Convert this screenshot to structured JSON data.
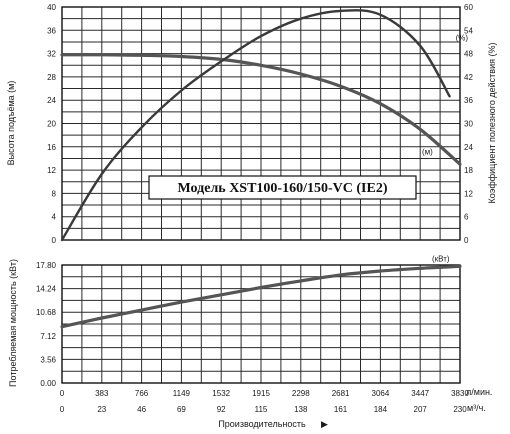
{
  "chart_data": {
    "type": "line",
    "title": "Модель XST100-160/150-VC (IE2)",
    "grid": true,
    "x_axis": {
      "label": "Производительность",
      "primary_unit": "л/мин.",
      "secondary_unit": "м³/ч.",
      "range": [
        0,
        3830
      ],
      "ticks_lpm": [
        "0",
        "383",
        "766",
        "1149",
        "1532",
        "1915",
        "2298",
        "2681",
        "3064",
        "3447",
        "3830"
      ],
      "ticks_m3h": [
        "0",
        "23",
        "46",
        "69",
        "92",
        "115",
        "138",
        "161",
        "184",
        "207",
        "230"
      ]
    },
    "upper_left_axis": {
      "label": "Высота подъёма (м)",
      "range": [
        0,
        40
      ],
      "ticks": [
        "0",
        "4",
        "8",
        "12",
        "16",
        "20",
        "24",
        "28",
        "32",
        "36",
        "40"
      ]
    },
    "upper_right_axis": {
      "label": "Коэффициент полезного действия (%)",
      "range": [
        0,
        60
      ],
      "ticks": [
        "0",
        "6",
        "12",
        "18",
        "24",
        "30",
        "36",
        "42",
        "48",
        "54",
        "60"
      ]
    },
    "lower_left_axis": {
      "label": "Потребляемая мощность (кВт)",
      "range": [
        0,
        17.8
      ],
      "ticks": [
        "0.00",
        "3.56",
        "7.12",
        "10.68",
        "14.24",
        "17.80"
      ]
    },
    "series": [
      {
        "name": "(м)",
        "panel": "upper",
        "axis": "left",
        "x": [
          0,
          383,
          766,
          1149,
          1532,
          1915,
          2298,
          2681,
          3064,
          3447,
          3830
        ],
        "y": [
          31.8,
          31.8,
          31.7,
          31.5,
          31.0,
          30.0,
          28.5,
          26.4,
          23.4,
          19.0,
          13.0
        ]
      },
      {
        "name": "(%)",
        "panel": "upper",
        "axis": "right",
        "x": [
          0,
          383,
          766,
          1149,
          1532,
          1915,
          2298,
          2681,
          3064,
          3447,
          3730
        ],
        "y": [
          0,
          17,
          29,
          38.5,
          46,
          52.5,
          57,
          59,
          58,
          50,
          37
        ]
      },
      {
        "name": "(кВт)",
        "panel": "lower",
        "axis": "left",
        "x": [
          0,
          383,
          766,
          1149,
          1532,
          1915,
          2298,
          2681,
          3064,
          3447,
          3830
        ],
        "y": [
          8.5,
          9.8,
          11.0,
          12.2,
          13.3,
          14.4,
          15.4,
          16.3,
          16.9,
          17.3,
          17.6
        ]
      }
    ]
  }
}
